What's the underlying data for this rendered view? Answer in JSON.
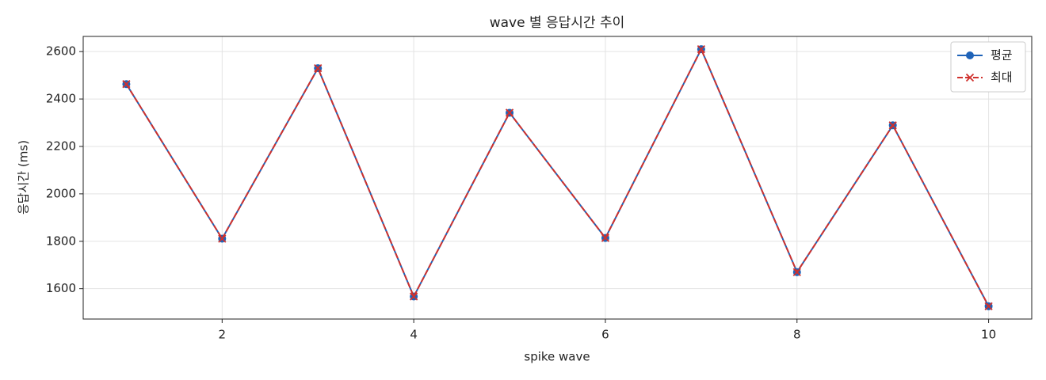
{
  "chart_data": {
    "type": "line",
    "title": "wave 별 응답시간 추이",
    "x_label": "spike wave",
    "y_label": "응답시간 (ms)",
    "x": [
      1,
      2,
      3,
      4,
      5,
      6,
      7,
      8,
      9,
      10
    ],
    "series": [
      {
        "name": "평균",
        "color": "#1f63b8",
        "linestyle": "solid",
        "marker": "o",
        "values": [
          2463,
          1811,
          2530,
          1567,
          2342,
          1814,
          2610,
          1670,
          2289,
          1526
        ]
      },
      {
        "name": "최대",
        "color": "#d0312d",
        "linestyle": "dashed",
        "marker": "x",
        "values": [
          2463,
          1811,
          2530,
          1567,
          2342,
          1814,
          2610,
          1670,
          2289,
          1526
        ]
      }
    ],
    "xlim": [
      0.55,
      10.45
    ],
    "xticks": [
      2,
      4,
      6,
      8,
      10
    ],
    "ylim": [
      1472,
      2664
    ],
    "yticks": [
      1600,
      1800,
      2000,
      2200,
      2400,
      2600
    ],
    "grid": true,
    "legend": "upper right"
  }
}
